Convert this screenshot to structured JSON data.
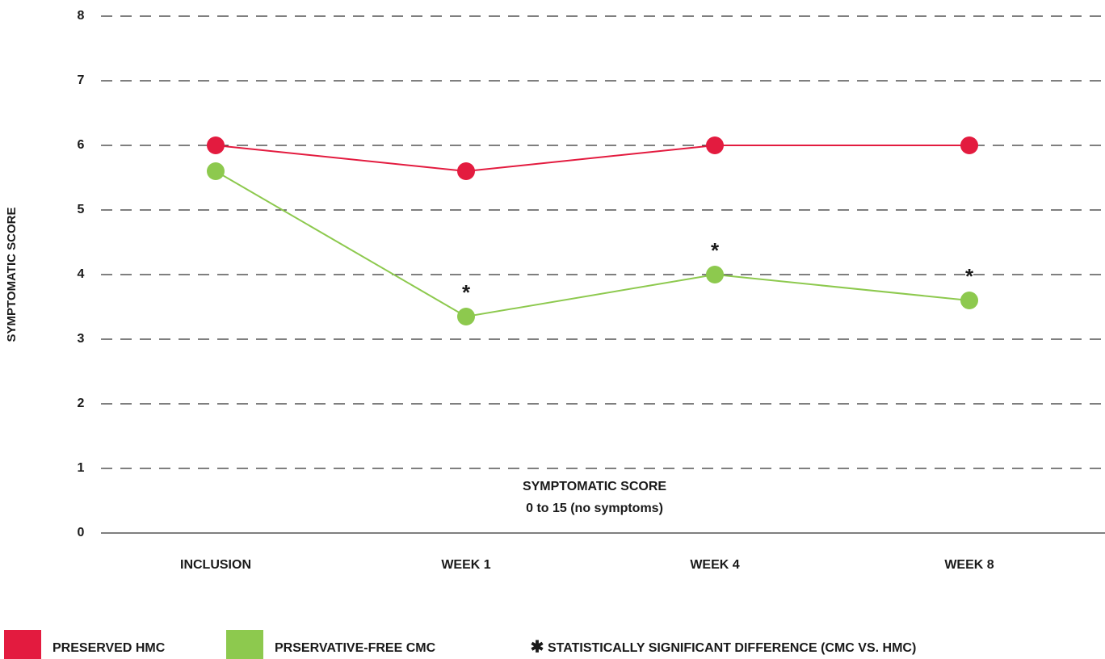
{
  "chart_data": {
    "type": "line",
    "ylabel": "SYMPTOMATIC SCORE",
    "annotation": [
      "SYMPTOMATIC SCORE",
      "0 to 15 (no symptoms)"
    ],
    "categories": [
      "INCLUSION",
      "WEEK 1",
      "WEEK 4",
      "WEEK 8"
    ],
    "series": [
      {
        "name": "PRESERVED HMC",
        "color": "#e31b3f",
        "values": [
          6,
          5.6,
          6,
          6
        ]
      },
      {
        "name": "PRSERVATIVE-FREE CMC",
        "color": "#8dc94e",
        "values": [
          5.6,
          3.35,
          4,
          3.6
        ]
      }
    ],
    "significant": [
      false,
      true,
      true,
      true
    ],
    "significance_marker": "*",
    "legend_marker": "✱",
    "significance_label": "STATISTICALLY SIGNIFICANT DIFFERENCE (CMC VS. HMC)",
    "ylim": [
      0,
      8
    ],
    "yticks": [
      0,
      1,
      2,
      3,
      4,
      5,
      6,
      7,
      8
    ],
    "grid": true,
    "legend": "bottom"
  }
}
